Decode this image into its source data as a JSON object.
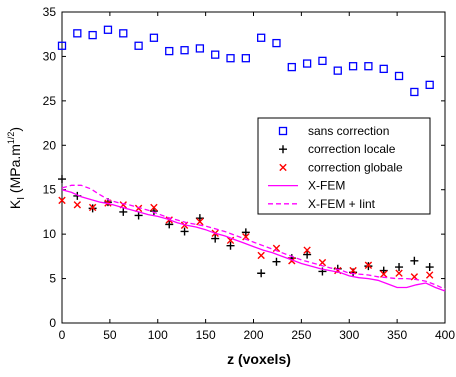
{
  "chart_data": {
    "type": "scatter",
    "xlabel": "z (voxels)",
    "ylabel": "K",
    "ylabel_sub": "I",
    "ylabel_unit": " (MPa.m",
    "ylabel_exp": "1/2",
    "ylabel_close": ")",
    "xlim": [
      0,
      400
    ],
    "ylim": [
      0,
      35
    ],
    "xticks": [
      0,
      50,
      100,
      150,
      200,
      250,
      300,
      350,
      400
    ],
    "yticks": [
      0,
      5,
      10,
      15,
      20,
      25,
      30,
      35
    ],
    "grid": false,
    "legend_position": "right",
    "colors": {
      "blue": "#0000ff",
      "black": "#000000",
      "red": "#ff0000",
      "magenta": "#ff00ff"
    },
    "series": [
      {
        "name": "sans correction",
        "marker": "square",
        "color": "#0000ff",
        "x": [
          0,
          16,
          32,
          48,
          64,
          80,
          96,
          112,
          128,
          144,
          160,
          176,
          192,
          208,
          224,
          240,
          256,
          272,
          288,
          304,
          320,
          336,
          352,
          368,
          384
        ],
        "y": [
          31.2,
          32.6,
          32.4,
          33.0,
          32.6,
          31.2,
          32.1,
          30.6,
          30.7,
          30.9,
          30.2,
          29.8,
          29.8,
          32.1,
          31.5,
          28.8,
          29.2,
          29.5,
          28.4,
          28.9,
          28.9,
          28.6,
          27.8,
          26.0,
          26.8
        ]
      },
      {
        "name": "correction locale",
        "marker": "plus",
        "color": "#000000",
        "x": [
          0,
          16,
          32,
          48,
          64,
          80,
          96,
          112,
          128,
          144,
          160,
          176,
          192,
          208,
          224,
          240,
          256,
          272,
          288,
          304,
          320,
          336,
          352,
          368,
          384
        ],
        "y": [
          16.2,
          14.3,
          12.9,
          13.6,
          12.5,
          12.1,
          12.6,
          11.1,
          10.3,
          11.8,
          9.5,
          8.7,
          10.2,
          5.6,
          6.9,
          7.3,
          7.7,
          5.8,
          6.1,
          5.7,
          6.4,
          5.9,
          6.3,
          7.0,
          6.3
        ]
      },
      {
        "name": "correction globale",
        "marker": "x",
        "color": "#ff0000",
        "x": [
          0,
          16,
          32,
          48,
          64,
          80,
          96,
          112,
          128,
          144,
          160,
          176,
          192,
          208,
          224,
          240,
          256,
          272,
          288,
          304,
          320,
          336,
          352,
          368,
          384
        ],
        "y": [
          13.8,
          13.3,
          13.0,
          13.5,
          13.3,
          12.9,
          13.0,
          11.6,
          11.0,
          11.4,
          10.1,
          9.3,
          9.7,
          7.6,
          8.4,
          7.0,
          8.2,
          6.8,
          5.9,
          5.9,
          6.5,
          5.5,
          5.6,
          5.2,
          5.4
        ]
      },
      {
        "name": "X-FEM",
        "line": "solid",
        "color": "#ff00ff",
        "x": [
          0,
          10,
          20,
          30,
          40,
          50,
          60,
          70,
          80,
          90,
          100,
          110,
          120,
          130,
          140,
          150,
          160,
          170,
          180,
          190,
          200,
          210,
          220,
          230,
          240,
          250,
          260,
          270,
          280,
          290,
          300,
          310,
          320,
          330,
          340,
          350,
          360,
          370,
          380,
          390,
          400
        ],
        "y": [
          15.0,
          14.7,
          14.2,
          13.9,
          13.6,
          13.4,
          13.1,
          12.8,
          12.5,
          12.2,
          12.0,
          11.7,
          11.3,
          11.0,
          10.8,
          10.5,
          10.1,
          9.8,
          9.4,
          9.0,
          8.6,
          8.2,
          7.9,
          7.5,
          7.1,
          6.7,
          6.4,
          6.1,
          5.9,
          5.7,
          5.3,
          5.1,
          5.0,
          4.8,
          4.4,
          4.0,
          4.0,
          4.3,
          4.5,
          4.0,
          3.6
        ]
      },
      {
        "name": "X-FEM + Iint",
        "line": "dashed",
        "color": "#ff00ff",
        "x": [
          0,
          10,
          20,
          30,
          40,
          50,
          60,
          70,
          80,
          90,
          100,
          110,
          120,
          130,
          140,
          150,
          160,
          170,
          180,
          190,
          200,
          210,
          220,
          230,
          240,
          250,
          260,
          270,
          280,
          290,
          300,
          310,
          320,
          330,
          340,
          350,
          360,
          370,
          380,
          390,
          400
        ],
        "y": [
          15.2,
          15.5,
          15.5,
          15.1,
          14.4,
          13.8,
          13.5,
          13.3,
          13.0,
          12.7,
          12.3,
          11.9,
          11.6,
          11.3,
          11.1,
          10.9,
          10.6,
          10.3,
          9.9,
          9.5,
          9.1,
          8.7,
          8.3,
          7.9,
          7.5,
          7.1,
          6.8,
          6.5,
          6.2,
          6.0,
          5.6,
          5.5,
          5.4,
          5.2,
          5.1,
          5.0,
          5.0,
          4.9,
          4.7,
          4.3,
          3.8
        ]
      }
    ]
  }
}
